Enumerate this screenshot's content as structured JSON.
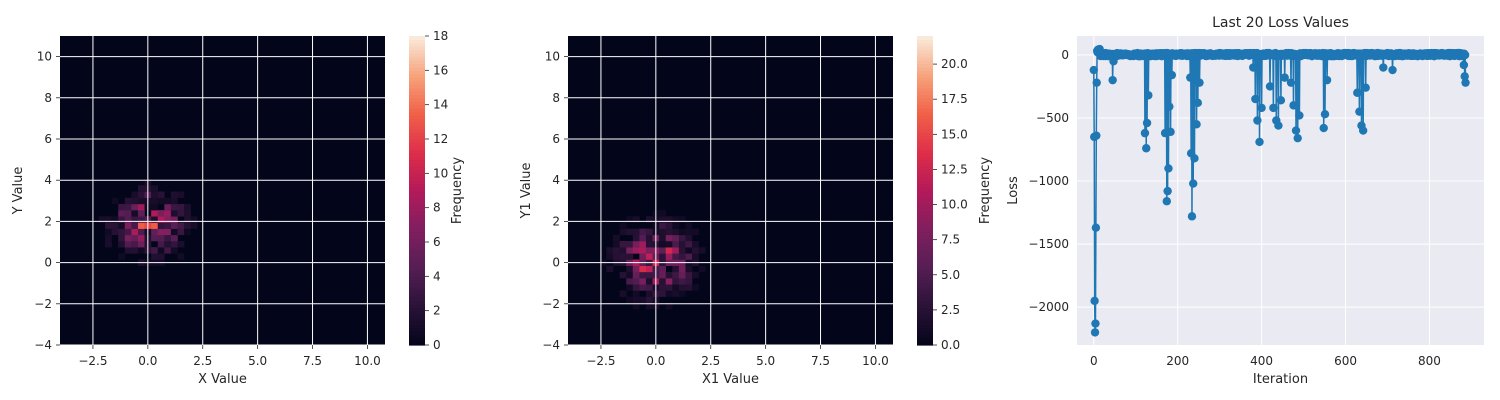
{
  "chart_data": [
    {
      "type": "heatmap",
      "title": "",
      "xlabel": "X Value",
      "ylabel": "Y Value",
      "xlim": [
        -4,
        10.8
      ],
      "ylim": [
        -4,
        11
      ],
      "xticks": [
        -2.5,
        0.0,
        2.5,
        5.0,
        7.5,
        10.0
      ],
      "yticks": [
        -4,
        -2,
        0,
        2,
        4,
        6,
        8,
        10
      ],
      "bin_width": 0.3,
      "center": [
        0.0,
        1.9
      ],
      "spread": [
        0.95,
        0.95
      ],
      "peak_cells": [
        [
          0.0,
          1.6
        ],
        [
          -0.9,
          2.2
        ],
        [
          -1.2,
          2.2
        ],
        [
          0.3,
          2.2
        ],
        [
          0.0,
          2.5
        ],
        [
          -0.3,
          1.9
        ]
      ],
      "colorbar": {
        "label": "Frequency",
        "min": 0,
        "max": 18,
        "ticks": [
          0,
          2,
          4,
          6,
          8,
          10,
          12,
          14,
          16,
          18
        ]
      },
      "grid": true
    },
    {
      "type": "heatmap",
      "title": "",
      "xlabel": "X1 Value",
      "ylabel": "Y1 Value",
      "xlim": [
        -4,
        10.8
      ],
      "ylim": [
        -4,
        11
      ],
      "xticks": [
        -2.5,
        0.0,
        2.5,
        5.0,
        7.5,
        10.0
      ],
      "yticks": [
        -4,
        -2,
        0,
        2,
        4,
        6,
        8,
        10
      ],
      "bin_width": 0.3,
      "center": [
        0.0,
        0.1
      ],
      "spread": [
        1.0,
        1.0
      ],
      "peak_cells": [
        [
          0.0,
          0.1
        ],
        [
          0.3,
          0.1
        ],
        [
          -0.6,
          1.0
        ],
        [
          -0.3,
          0.7
        ]
      ],
      "colorbar": {
        "label": "Frequency",
        "min": 0,
        "max": 22,
        "ticks": [
          0.0,
          2.5,
          5.0,
          7.5,
          10.0,
          12.5,
          15.0,
          17.5,
          20.0
        ]
      },
      "grid": true
    },
    {
      "type": "line",
      "title": "Last 20 Loss Values",
      "xlabel": "Iteration",
      "ylabel": "Loss",
      "xlim": [
        -40,
        930
      ],
      "ylim": [
        -2300,
        150
      ],
      "xticks": [
        0,
        200,
        400,
        600,
        800
      ],
      "yticks": [
        -2000,
        -1500,
        -1000,
        -500,
        0
      ],
      "marker": "circle",
      "color": "#1f77b4",
      "grid": true,
      "dips": [
        {
          "x": 0,
          "y": -120
        },
        {
          "x": 1,
          "y": -650
        },
        {
          "x": 2,
          "y": -1950
        },
        {
          "x": 3,
          "y": -2200
        },
        {
          "x": 4,
          "y": -2130
        },
        {
          "x": 5,
          "y": -1370
        },
        {
          "x": 6,
          "y": -640
        },
        {
          "x": 7,
          "y": -220
        },
        {
          "x": 45,
          "y": -200
        },
        {
          "x": 47,
          "y": -50
        },
        {
          "x": 122,
          "y": -620
        },
        {
          "x": 125,
          "y": -740
        },
        {
          "x": 127,
          "y": -540
        },
        {
          "x": 130,
          "y": -320
        },
        {
          "x": 170,
          "y": -620
        },
        {
          "x": 174,
          "y": -1160
        },
        {
          "x": 176,
          "y": -1080
        },
        {
          "x": 178,
          "y": -900
        },
        {
          "x": 180,
          "y": -410
        },
        {
          "x": 183,
          "y": -610
        },
        {
          "x": 186,
          "y": -160
        },
        {
          "x": 230,
          "y": -180
        },
        {
          "x": 232,
          "y": -780
        },
        {
          "x": 234,
          "y": -1280
        },
        {
          "x": 237,
          "y": -1020
        },
        {
          "x": 240,
          "y": -820
        },
        {
          "x": 245,
          "y": -550
        },
        {
          "x": 248,
          "y": -380
        },
        {
          "x": 252,
          "y": -220
        },
        {
          "x": 380,
          "y": -100
        },
        {
          "x": 385,
          "y": -350
        },
        {
          "x": 390,
          "y": -520
        },
        {
          "x": 395,
          "y": -690
        },
        {
          "x": 400,
          "y": -420
        },
        {
          "x": 420,
          "y": -250
        },
        {
          "x": 428,
          "y": -420
        },
        {
          "x": 435,
          "y": -520
        },
        {
          "x": 440,
          "y": -560
        },
        {
          "x": 446,
          "y": -360
        },
        {
          "x": 455,
          "y": -180
        },
        {
          "x": 470,
          "y": -220
        },
        {
          "x": 476,
          "y": -400
        },
        {
          "x": 482,
          "y": -600
        },
        {
          "x": 486,
          "y": -660
        },
        {
          "x": 490,
          "y": -480
        },
        {
          "x": 548,
          "y": -580
        },
        {
          "x": 551,
          "y": -470
        },
        {
          "x": 556,
          "y": -200
        },
        {
          "x": 628,
          "y": -300
        },
        {
          "x": 633,
          "y": -450
        },
        {
          "x": 638,
          "y": -560
        },
        {
          "x": 642,
          "y": -600
        },
        {
          "x": 648,
          "y": -260
        },
        {
          "x": 690,
          "y": -100
        },
        {
          "x": 712,
          "y": -120
        },
        {
          "x": 882,
          "y": -80
        },
        {
          "x": 884,
          "y": -170
        },
        {
          "x": 886,
          "y": -220
        }
      ],
      "x_max": 886
    }
  ]
}
